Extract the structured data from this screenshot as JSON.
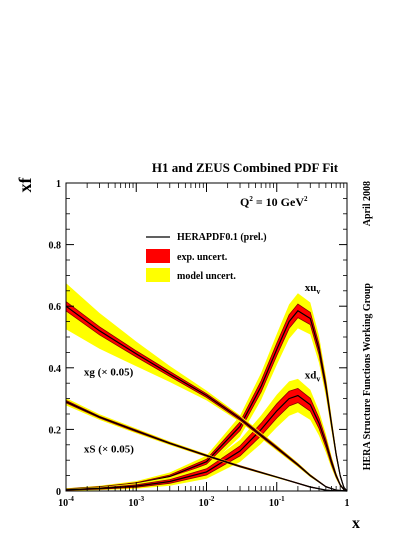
{
  "chart_data": {
    "type": "line",
    "title": "H1 and ZEUS Combined PDF Fit",
    "ylabel": "xf",
    "xlabel": "x",
    "x_scale": "log",
    "xlim": [
      0.0001,
      1
    ],
    "ylim": [
      0,
      1
    ],
    "x_ticks": [
      {
        "base": "10",
        "exp": "-4",
        "value": 0.0001
      },
      {
        "base": "10",
        "exp": "-3",
        "value": 0.001
      },
      {
        "base": "10",
        "exp": "-2",
        "value": 0.01
      },
      {
        "base": "10",
        "exp": "-1",
        "value": 0.1
      },
      {
        "base": "",
        "exp": "",
        "label": "1",
        "value": 1
      }
    ],
    "y_ticks": [
      "0",
      "0.2",
      "0.4",
      "0.6",
      "0.8",
      "1"
    ],
    "y_tick_values": [
      0,
      0.2,
      0.4,
      0.6,
      0.8,
      1
    ],
    "q2_label": {
      "prefix": "Q",
      "exp": "2",
      "middle": " = 10 GeV",
      "unit_exp": "2"
    },
    "date_note": "April 2008",
    "group_note": "HERA Structure Functions Working Group",
    "legend": [
      {
        "label": "HERAPDF0.1 (prel.)",
        "kind": "line",
        "color": "#000000"
      },
      {
        "label": "exp. uncert.",
        "kind": "box",
        "color": "#ff0000"
      },
      {
        "label": "model uncert.",
        "kind": "box",
        "color": "#ffff00"
      }
    ],
    "colors": {
      "central": "#000000",
      "exp": "#ff0000",
      "model": "#ffff00",
      "line_under": "#8b0000"
    },
    "series": [
      {
        "name": "xu",
        "sub": "v",
        "annotation_x": 0.25,
        "annotation_y": 0.65,
        "x": [
          0.0001,
          0.0003,
          0.001,
          0.003,
          0.01,
          0.03,
          0.06,
          0.1,
          0.15,
          0.2,
          0.3,
          0.4,
          0.5,
          0.6,
          0.7,
          0.8,
          0.9,
          1
        ],
        "y": [
          0.006,
          0.012,
          0.024,
          0.047,
          0.095,
          0.21,
          0.34,
          0.46,
          0.55,
          0.585,
          0.56,
          0.46,
          0.34,
          0.22,
          0.12,
          0.05,
          0.012,
          0
        ],
        "exp_err": [
          0.001,
          0.002,
          0.003,
          0.005,
          0.008,
          0.014,
          0.018,
          0.02,
          0.022,
          0.022,
          0.02,
          0.017,
          0.013,
          0.009,
          0.005,
          0.002,
          0.001,
          0
        ],
        "model_err": [
          0.002,
          0.003,
          0.005,
          0.008,
          0.012,
          0.02,
          0.026,
          0.03,
          0.034,
          0.035,
          0.032,
          0.027,
          0.021,
          0.015,
          0.009,
          0.004,
          0.002,
          0
        ]
      },
      {
        "name": "xd",
        "sub": "v",
        "annotation_x": 0.25,
        "annotation_y": 0.365,
        "x": [
          0.0001,
          0.0003,
          0.001,
          0.003,
          0.01,
          0.03,
          0.06,
          0.1,
          0.15,
          0.2,
          0.3,
          0.4,
          0.5,
          0.6,
          0.7,
          0.8,
          0.9,
          1
        ],
        "y": [
          0.004,
          0.008,
          0.016,
          0.031,
          0.062,
          0.13,
          0.2,
          0.26,
          0.3,
          0.31,
          0.28,
          0.22,
          0.155,
          0.095,
          0.05,
          0.02,
          0.005,
          0
        ],
        "exp_err": [
          0.001,
          0.002,
          0.004,
          0.006,
          0.01,
          0.016,
          0.02,
          0.023,
          0.024,
          0.023,
          0.021,
          0.017,
          0.013,
          0.009,
          0.005,
          0.002,
          0.001,
          0
        ],
        "model_err": [
          0.002,
          0.003,
          0.005,
          0.008,
          0.012,
          0.02,
          0.026,
          0.03,
          0.032,
          0.031,
          0.028,
          0.023,
          0.017,
          0.011,
          0.006,
          0.003,
          0.001,
          0
        ]
      },
      {
        "name": "xg (× 0.05)",
        "sub": "",
        "annotation_x": 0.00018,
        "annotation_y": 0.375,
        "x": [
          0.0001,
          0.0003,
          0.001,
          0.003,
          0.01,
          0.03,
          0.1,
          0.2,
          0.3,
          0.5,
          0.7,
          1
        ],
        "y": [
          0.6,
          0.52,
          0.445,
          0.38,
          0.31,
          0.235,
          0.14,
          0.085,
          0.05,
          0.014,
          0.003,
          0
        ],
        "exp_err": [
          0.015,
          0.013,
          0.01,
          0.008,
          0.006,
          0.005,
          0.004,
          0.003,
          0.002,
          0.001,
          0,
          0
        ],
        "model_err": [
          0.06,
          0.045,
          0.03,
          0.018,
          0.01,
          0.006,
          0.005,
          0.004,
          0.003,
          0.001,
          0,
          0
        ]
      },
      {
        "name": "xS (× 0.05)",
        "sub": "",
        "annotation_x": 0.00018,
        "annotation_y": 0.125,
        "x": [
          0.0001,
          0.0003,
          0.001,
          0.003,
          0.01,
          0.03,
          0.1,
          0.2,
          0.3,
          0.5,
          0.7,
          1
        ],
        "y": [
          0.29,
          0.24,
          0.195,
          0.155,
          0.115,
          0.08,
          0.045,
          0.025,
          0.013,
          0.003,
          0.0005,
          0
        ],
        "exp_err": [
          0.004,
          0.003,
          0.003,
          0.002,
          0.002,
          0.002,
          0.001,
          0.001,
          0.001,
          0,
          0,
          0
        ],
        "model_err": [
          0.008,
          0.006,
          0.005,
          0.004,
          0.003,
          0.002,
          0.002,
          0.001,
          0.001,
          0,
          0,
          0
        ]
      }
    ]
  }
}
